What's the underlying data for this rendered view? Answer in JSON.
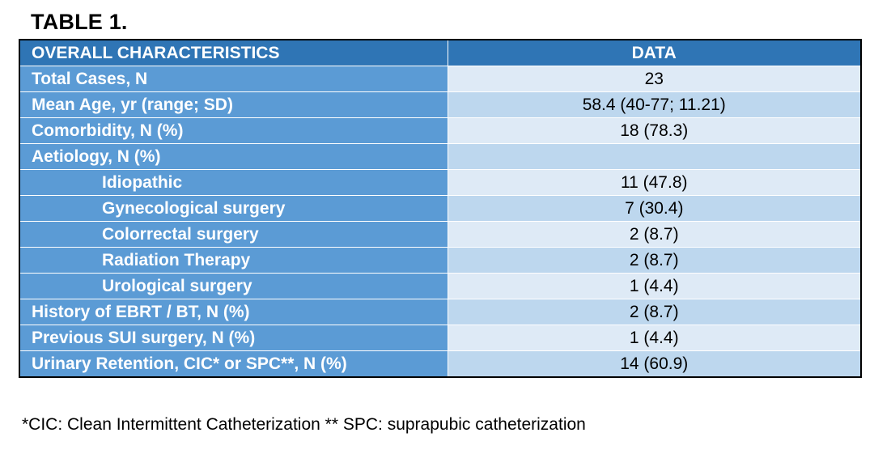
{
  "title": "TABLE 1.",
  "header": {
    "label": "OVERALL CHARACTERISTICS",
    "value": "DATA"
  },
  "rows": [
    {
      "label": "Total Cases, N",
      "value": "23",
      "indent": false
    },
    {
      "label": "Mean Age, yr (range; SD)",
      "value": "58.4 (40-77; 11.21)",
      "indent": false
    },
    {
      "label": "Comorbidity, N (%)",
      "value": "18 (78.3)",
      "indent": false
    },
    {
      "label": "Aetiology, N (%)",
      "value": "",
      "indent": false
    },
    {
      "label": "Idiopathic",
      "value": "11 (47.8)",
      "indent": true
    },
    {
      "label": "Gynecological surgery",
      "value": "7 (30.4)",
      "indent": true
    },
    {
      "label": "Colorrectal surgery",
      "value": "2 (8.7)",
      "indent": true
    },
    {
      "label": "Radiation Therapy",
      "value": "2 (8.7)",
      "indent": true
    },
    {
      "label": "Urological surgery",
      "value": "1 (4.4)",
      "indent": true
    },
    {
      "label": "History of EBRT / BT, N (%)",
      "value": "2 (8.7)",
      "indent": false
    },
    {
      "label": "Previous SUI surgery, N (%)",
      "value": "1 (4.4)",
      "indent": false
    },
    {
      "label": "Urinary Retention, CIC* or SPC**, N (%)",
      "value": "14 (60.9)",
      "indent": false
    }
  ],
  "footnote": "*CIC: Clean Intermittent Catheterization ** SPC: suprapubic catheterization"
}
